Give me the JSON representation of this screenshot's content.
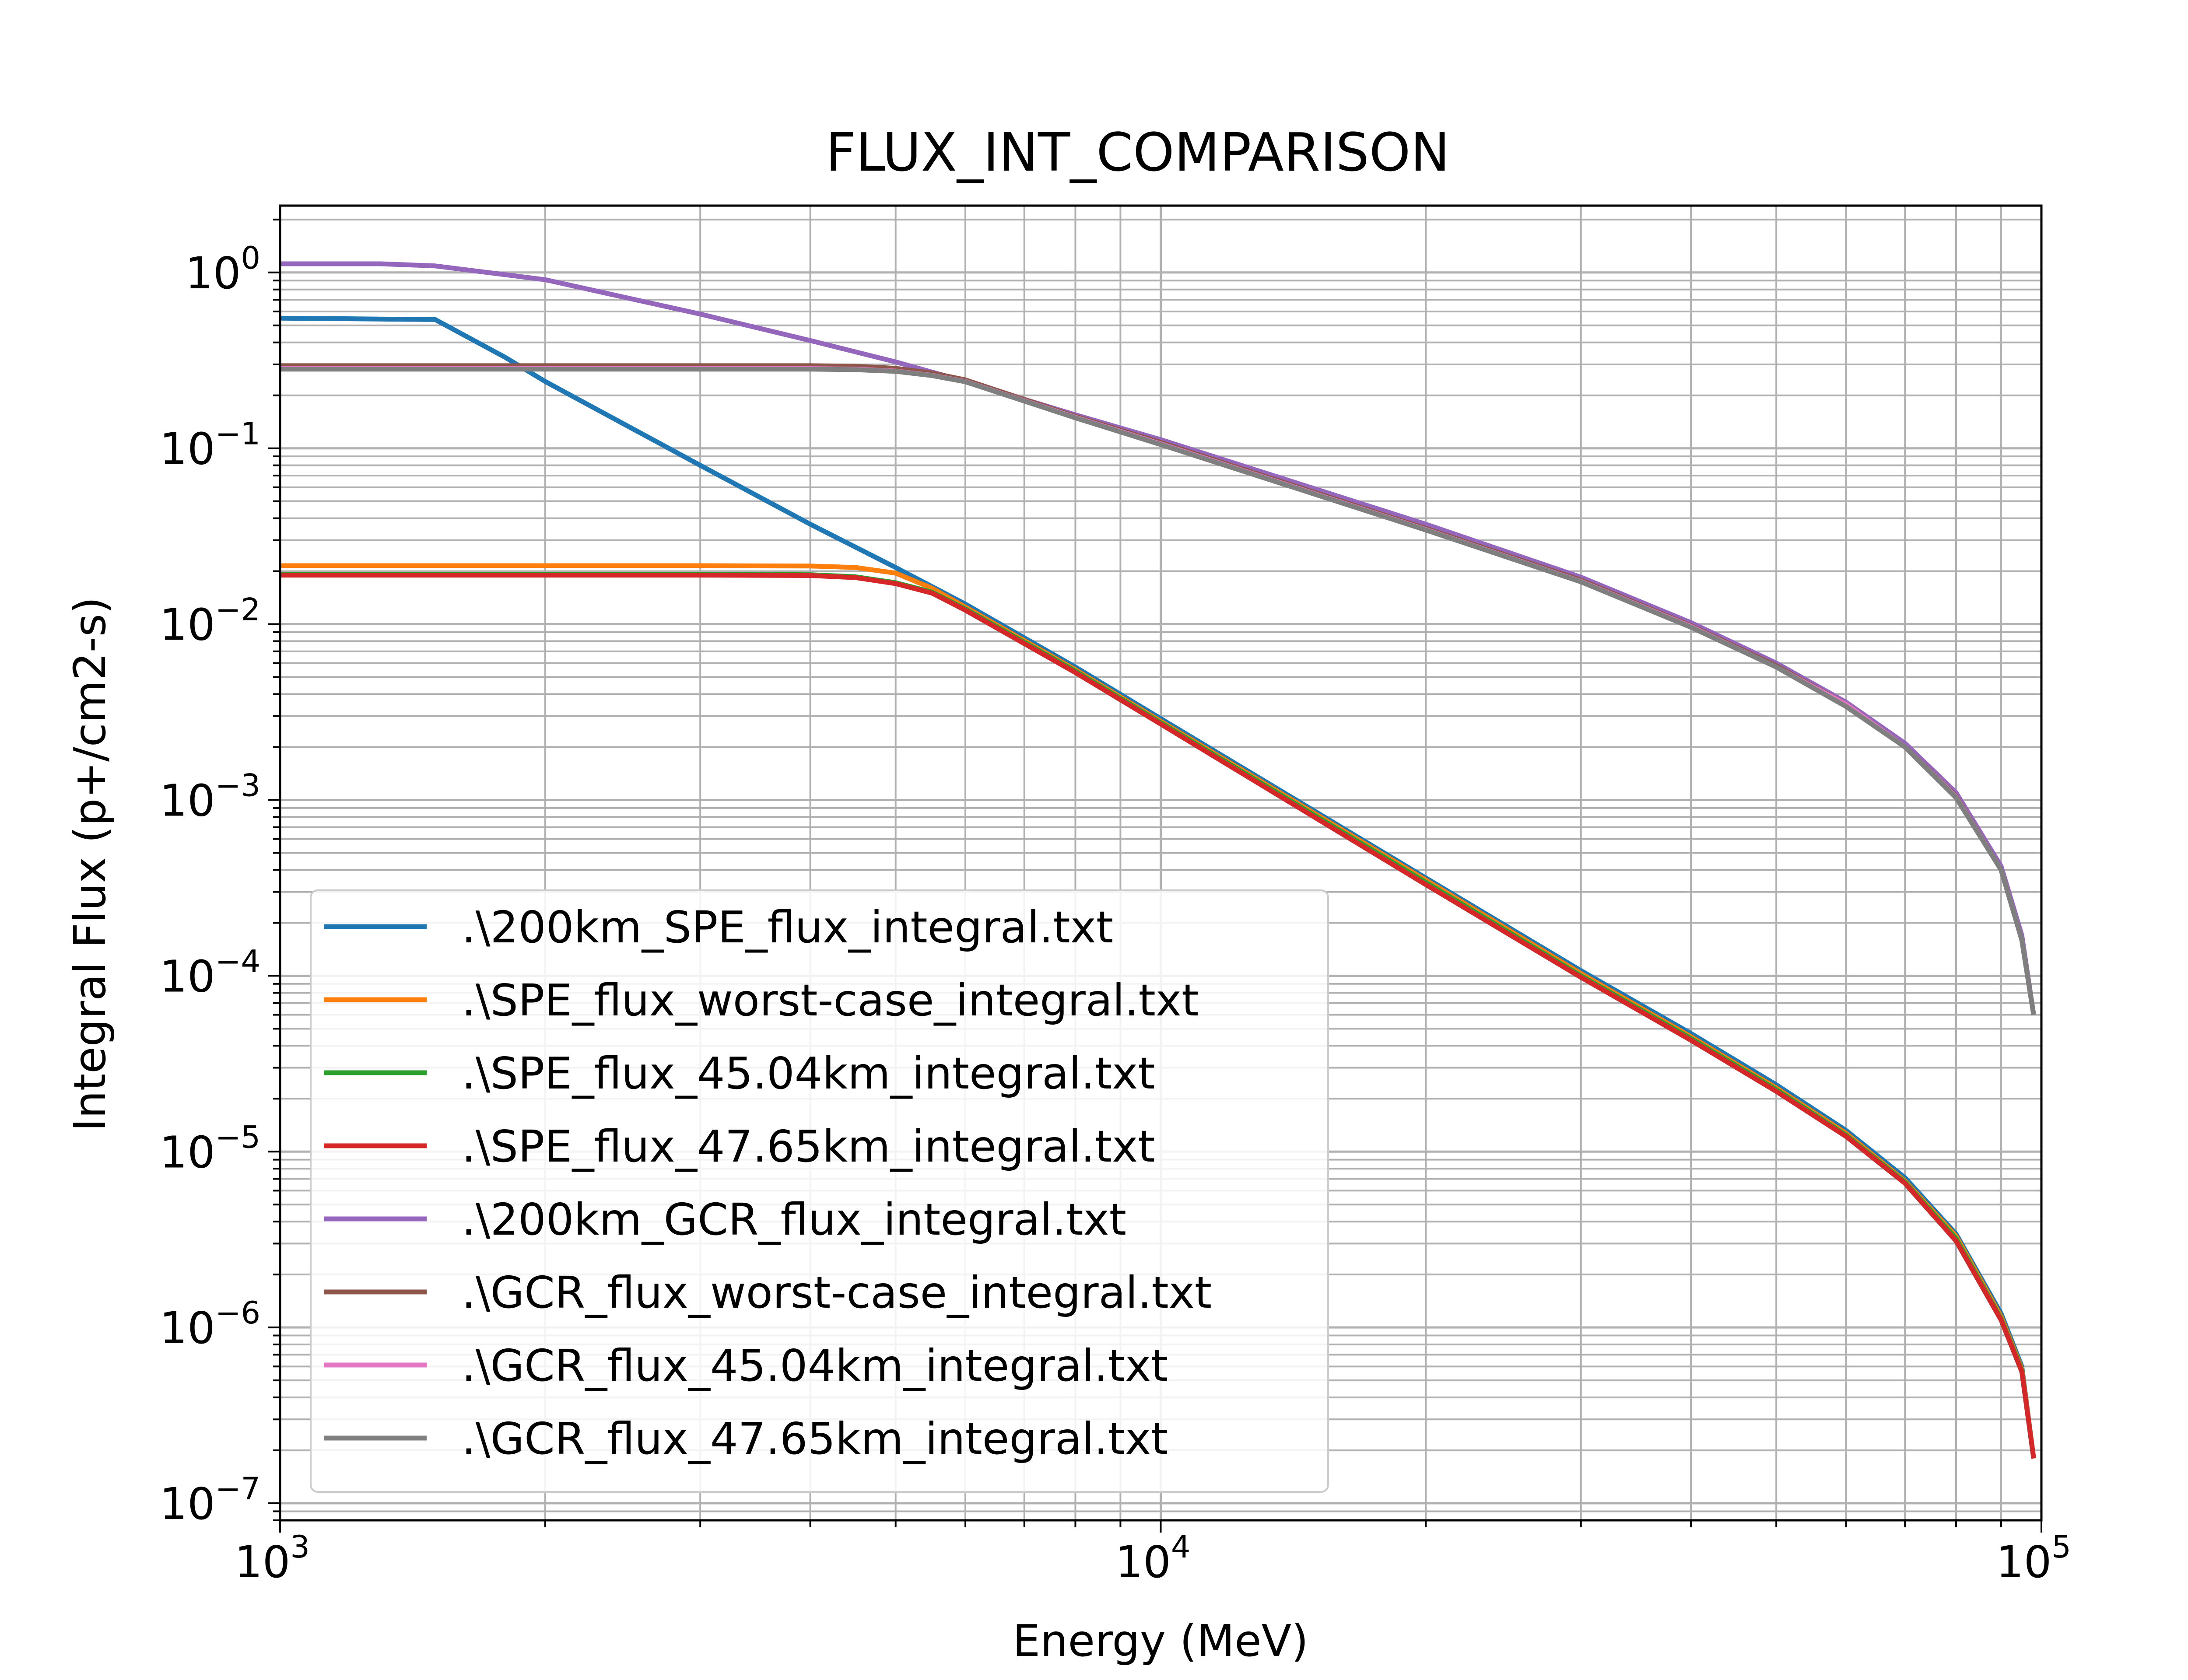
{
  "chart_data": {
    "type": "line",
    "title": "FLUX_INT_COMPARISON",
    "xlabel": "Energy (MeV)",
    "ylabel": "Integral Flux (p+/cm2-s)",
    "xscale": "log",
    "yscale": "log",
    "xlim": [
      1000,
      100000
    ],
    "ylim": [
      8e-08,
      2.4
    ],
    "x_tick_labels": [
      {
        "value": 1000,
        "base": "10",
        "exp": "3"
      },
      {
        "value": 10000,
        "base": "10",
        "exp": "4"
      },
      {
        "value": 100000,
        "base": "10",
        "exp": "5"
      }
    ],
    "y_tick_labels": [
      {
        "value": 1,
        "base": "10",
        "exp": "0"
      },
      {
        "value": 0.1,
        "base": "10",
        "exp": "−1"
      },
      {
        "value": 0.01,
        "base": "10",
        "exp": "−2"
      },
      {
        "value": 0.001,
        "base": "10",
        "exp": "−3"
      },
      {
        "value": 0.0001,
        "base": "10",
        "exp": "−4"
      },
      {
        "value": 1e-05,
        "base": "10",
        "exp": "−5"
      },
      {
        "value": 1e-06,
        "base": "10",
        "exp": "−6"
      },
      {
        "value": 1e-07,
        "base": "10",
        "exp": "−7"
      }
    ],
    "grid": true,
    "legend_position": "lower-left",
    "series": [
      {
        "name": ".\\200km_SPE_flux_integral.txt",
        "color": "#1f77b4",
        "points": [
          [
            1000,
            0.55
          ],
          [
            1500,
            0.54
          ],
          [
            1800,
            0.33
          ],
          [
            2000,
            0.24
          ],
          [
            3000,
            0.08
          ],
          [
            4000,
            0.037
          ],
          [
            5000,
            0.021
          ],
          [
            6000,
            0.013
          ],
          [
            8000,
            0.0057
          ],
          [
            10000,
            0.0029
          ],
          [
            20000,
            0.00036
          ],
          [
            30000,
            0.000107
          ],
          [
            40000,
            4.7e-05
          ],
          [
            50000,
            2.4e-05
          ],
          [
            60000,
            1.32e-05
          ],
          [
            70000,
            7.1e-06
          ],
          [
            80000,
            3.4e-06
          ],
          [
            90000,
            1.2e-06
          ],
          [
            95000,
            6e-07
          ],
          [
            98000,
            1.8e-07
          ]
        ]
      },
      {
        "name": ".\\SPE_flux_worst-case_integral.txt",
        "color": "#ff7f0e",
        "points": [
          [
            1000,
            0.0215
          ],
          [
            2000,
            0.0215
          ],
          [
            3000,
            0.0215
          ],
          [
            4000,
            0.0214
          ],
          [
            4500,
            0.021
          ],
          [
            5000,
            0.0195
          ],
          [
            5500,
            0.016
          ],
          [
            6000,
            0.0125
          ],
          [
            8000,
            0.0055
          ],
          [
            10000,
            0.0028
          ],
          [
            20000,
            0.00035
          ],
          [
            30000,
            0.000103
          ],
          [
            40000,
            4.5e-05
          ],
          [
            50000,
            2.3e-05
          ],
          [
            60000,
            1.27e-05
          ],
          [
            70000,
            6.8e-06
          ],
          [
            80000,
            3.3e-06
          ],
          [
            90000,
            1.15e-06
          ],
          [
            95000,
            5.8e-07
          ],
          [
            98000,
            1.8e-07
          ]
        ]
      },
      {
        "name": ".\\SPE_flux_45.04km_integral.txt",
        "color": "#2ca02c",
        "points": [
          [
            1000,
            0.0192
          ],
          [
            2000,
            0.0192
          ],
          [
            3000,
            0.0192
          ],
          [
            4000,
            0.0191
          ],
          [
            4500,
            0.0186
          ],
          [
            5000,
            0.0172
          ],
          [
            5500,
            0.0152
          ],
          [
            6000,
            0.0122
          ],
          [
            8000,
            0.0054
          ],
          [
            10000,
            0.00275
          ],
          [
            20000,
            0.00034
          ],
          [
            30000,
            0.0001
          ],
          [
            40000,
            4.4e-05
          ],
          [
            50000,
            2.25e-05
          ],
          [
            60000,
            1.24e-05
          ],
          [
            70000,
            6.7e-06
          ],
          [
            80000,
            3.2e-06
          ],
          [
            90000,
            1.12e-06
          ],
          [
            95000,
            5.7e-07
          ],
          [
            98000,
            1.8e-07
          ]
        ]
      },
      {
        "name": ".\\SPE_flux_47.65km_integral.txt",
        "color": "#d62728",
        "points": [
          [
            1000,
            0.019
          ],
          [
            2000,
            0.019
          ],
          [
            3000,
            0.019
          ],
          [
            4000,
            0.0189
          ],
          [
            4500,
            0.0184
          ],
          [
            5000,
            0.017
          ],
          [
            5500,
            0.015
          ],
          [
            6000,
            0.012
          ],
          [
            8000,
            0.0053
          ],
          [
            10000,
            0.0027
          ],
          [
            20000,
            0.00033
          ],
          [
            30000,
            9.8e-05
          ],
          [
            40000,
            4.3e-05
          ],
          [
            50000,
            2.2e-05
          ],
          [
            60000,
            1.22e-05
          ],
          [
            70000,
            6.6e-06
          ],
          [
            80000,
            3.1e-06
          ],
          [
            90000,
            1.1e-06
          ],
          [
            95000,
            5.6e-07
          ],
          [
            98000,
            1.8e-07
          ]
        ]
      },
      {
        "name": ".\\200km_GCR_flux_integral.txt",
        "color": "#9467bd",
        "points": [
          [
            1000,
            1.12
          ],
          [
            1300,
            1.12
          ],
          [
            1500,
            1.09
          ],
          [
            2000,
            0.91
          ],
          [
            3000,
            0.58
          ],
          [
            4000,
            0.41
          ],
          [
            5000,
            0.31
          ],
          [
            6000,
            0.24
          ],
          [
            8000,
            0.155
          ],
          [
            10000,
            0.112
          ],
          [
            20000,
            0.037
          ],
          [
            30000,
            0.0185
          ],
          [
            40000,
            0.0102
          ],
          [
            50000,
            0.006
          ],
          [
            60000,
            0.0036
          ],
          [
            70000,
            0.0021
          ],
          [
            80000,
            0.0011
          ],
          [
            90000,
            0.00042
          ],
          [
            95000,
            0.00017
          ],
          [
            98000,
            6e-05
          ]
        ]
      },
      {
        "name": ".\\GCR_flux_worst-case_integral.txt",
        "color": "#8c564b",
        "points": [
          [
            1000,
            0.295
          ],
          [
            2000,
            0.295
          ],
          [
            3000,
            0.295
          ],
          [
            4000,
            0.295
          ],
          [
            4500,
            0.293
          ],
          [
            5000,
            0.285
          ],
          [
            5500,
            0.268
          ],
          [
            6000,
            0.245
          ],
          [
            8000,
            0.152
          ],
          [
            10000,
            0.108
          ],
          [
            20000,
            0.035
          ],
          [
            30000,
            0.0178
          ],
          [
            40000,
            0.0098
          ],
          [
            50000,
            0.0058
          ],
          [
            60000,
            0.0035
          ],
          [
            70000,
            0.002
          ],
          [
            80000,
            0.00105
          ],
          [
            90000,
            0.0004
          ],
          [
            95000,
            0.00016
          ],
          [
            98000,
            6e-05
          ]
        ]
      },
      {
        "name": ".\\GCR_flux_45.04km_integral.txt",
        "color": "#e377c2",
        "points": [
          [
            1000,
            0.284
          ],
          [
            2000,
            0.284
          ],
          [
            3000,
            0.284
          ],
          [
            4000,
            0.284
          ],
          [
            4500,
            0.282
          ],
          [
            5000,
            0.275
          ],
          [
            5500,
            0.26
          ],
          [
            6000,
            0.24
          ],
          [
            8000,
            0.15
          ],
          [
            10000,
            0.106
          ],
          [
            20000,
            0.0345
          ],
          [
            30000,
            0.0175
          ],
          [
            40000,
            0.0097
          ],
          [
            50000,
            0.0057
          ],
          [
            60000,
            0.0035
          ],
          [
            70000,
            0.002
          ],
          [
            80000,
            0.00104
          ],
          [
            90000,
            0.0004
          ],
          [
            95000,
            0.00016
          ],
          [
            98000,
            6e-05
          ]
        ]
      },
      {
        "name": ".\\GCR_flux_47.65km_integral.txt",
        "color": "#7f7f7f",
        "points": [
          [
            1000,
            0.282
          ],
          [
            2000,
            0.282
          ],
          [
            3000,
            0.282
          ],
          [
            4000,
            0.282
          ],
          [
            4500,
            0.28
          ],
          [
            5000,
            0.274
          ],
          [
            5500,
            0.259
          ],
          [
            6000,
            0.239
          ],
          [
            8000,
            0.149
          ],
          [
            10000,
            0.105
          ],
          [
            20000,
            0.0343
          ],
          [
            30000,
            0.0174
          ],
          [
            40000,
            0.0096
          ],
          [
            50000,
            0.0057
          ],
          [
            60000,
            0.0034
          ],
          [
            70000,
            0.002
          ],
          [
            80000,
            0.00103
          ],
          [
            90000,
            0.0004
          ],
          [
            95000,
            0.00016
          ],
          [
            98000,
            6e-05
          ]
        ]
      }
    ]
  }
}
